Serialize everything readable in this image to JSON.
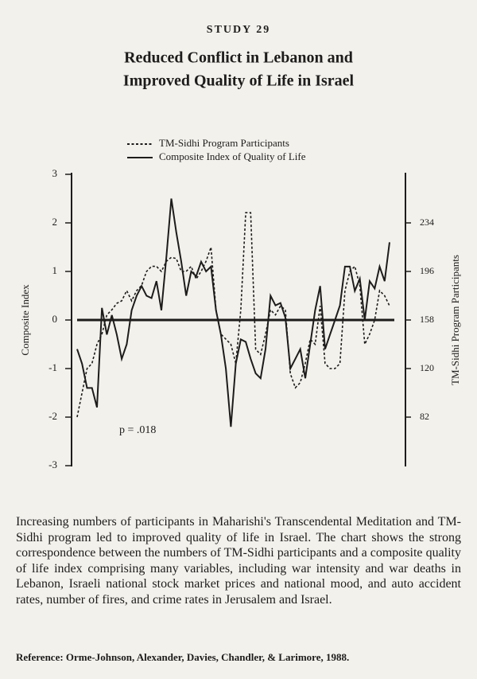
{
  "study": "STUDY 29",
  "chart_data": {
    "type": "line",
    "title": "Reduced Conflict in Lebanon and",
    "subtitle": "Improved Quality of Life in Israel",
    "ylabel": "Composite Index",
    "y2label": "TM-Sidhi Program Participants",
    "annotation": "p = .018",
    "ylim": [
      -3,
      3
    ],
    "yticks": [
      -3,
      -2,
      -1,
      0,
      1,
      2,
      3
    ],
    "y2lim": [
      44,
      272
    ],
    "y2ticks": [
      82,
      120,
      158,
      196,
      234
    ],
    "series": [
      {
        "name": "TM-Sidhi Program Participants",
        "color": "#1e1c1b",
        "style": "dotted",
        "axis": "y2",
        "values": [
          82,
          101,
          120,
          124,
          139,
          147,
          162,
          166,
          171,
          173,
          181,
          173,
          181,
          185,
          196,
          200,
          200,
          196,
          204,
          207,
          206,
          196,
          196,
          200,
          190,
          196,
          204,
          215,
          166,
          147,
          143,
          139,
          124,
          166,
          242,
          242,
          135,
          131,
          147,
          166,
          162,
          169,
          166,
          116,
          105,
          109,
          124,
          143,
          139,
          169,
          124,
          120,
          120,
          124,
          181,
          196,
          200,
          185,
          139,
          147,
          158,
          181,
          177,
          169
        ]
      },
      {
        "name": "Composite Index of Quality of Life",
        "color": "#1e1c1b",
        "style": "solid",
        "values": [
          -0.6,
          -0.9,
          -1.4,
          -1.4,
          -1.8,
          0.25,
          -0.3,
          0.1,
          -0.3,
          -0.8,
          -0.5,
          0.2,
          0.5,
          0.7,
          0.5,
          0.45,
          0.8,
          0.2,
          1.3,
          2.5,
          1.8,
          1.2,
          0.5,
          1.0,
          0.9,
          1.2,
          1.0,
          1.1,
          0.2,
          -0.3,
          -1.0,
          -2.2,
          -0.9,
          -0.4,
          -0.45,
          -0.8,
          -1.1,
          -1.2,
          -0.6,
          0.5,
          0.3,
          0.35,
          0.05,
          -1.0,
          -0.8,
          -0.6,
          -1.2,
          -0.5,
          0.2,
          0.7,
          -0.6,
          -0.3,
          0.0,
          0.3,
          1.1,
          1.1,
          0.6,
          0.85,
          0.0,
          0.8,
          0.65,
          1.1,
          0.8,
          1.6
        ]
      }
    ]
  },
  "caption": "Increasing numbers of participants in Maharishi's Transcendental Meditation and TM-Sidhi program led to improved quality of life in Israel. The chart shows the strong correspondence between the numbers of TM-Sidhi participants and a composite quality of life index comprising many variables, including war intensity and war deaths in Lebanon, Israeli national stock market prices and national mood, and auto accident rates, number of fires, and crime rates in Jerusalem and Israel.",
  "reference": "Reference: Orme-Johnson, Alexander, Davies, Chandler, & Larimore, 1988."
}
